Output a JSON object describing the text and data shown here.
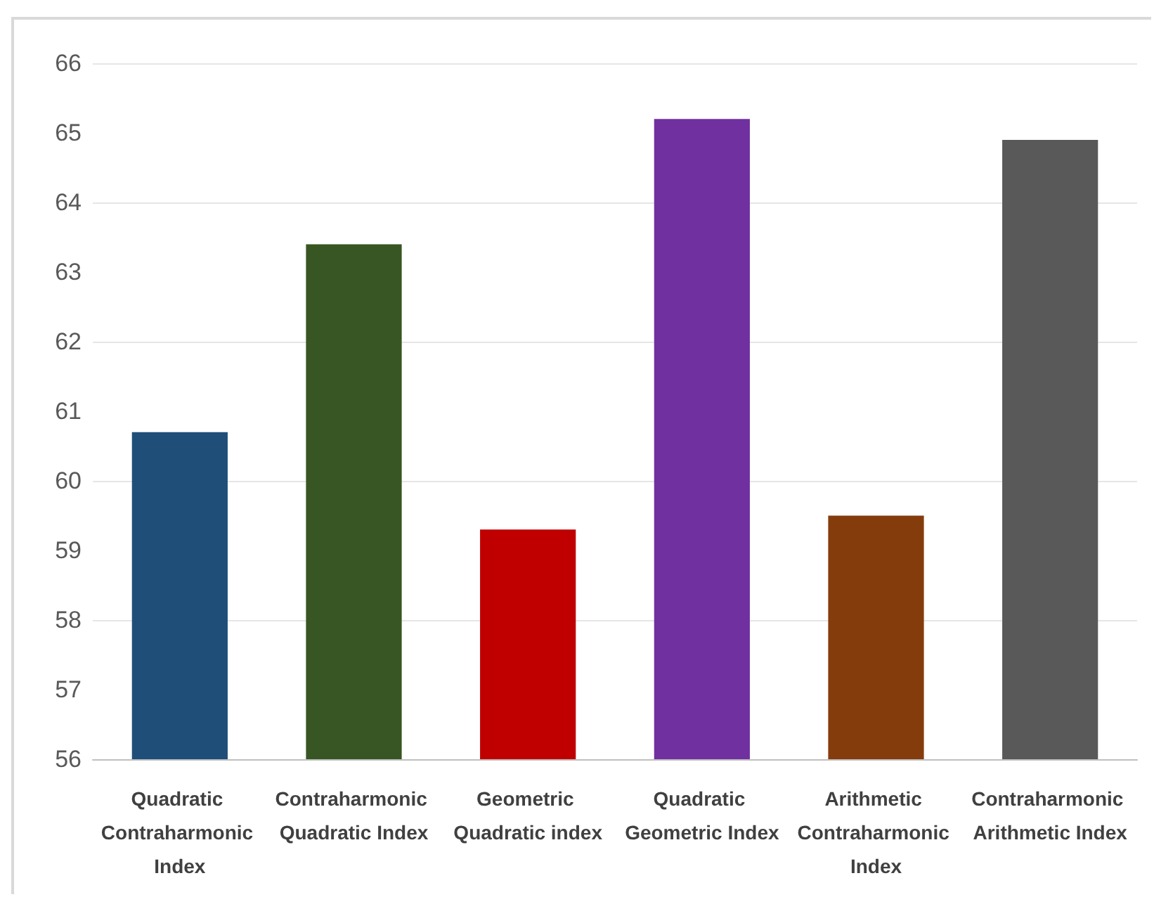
{
  "chart_data": {
    "type": "bar",
    "categories": [
      "Quadratic Contraharmonic Index",
      "Contraharmonic Quadratic Index",
      "Geometric Quadratic index",
      "Quadratic Geometric Index",
      "Arithmetic Contraharmonic Index",
      "Contraharmonic Arithmetic Index"
    ],
    "values": [
      60.7,
      63.4,
      59.3,
      65.2,
      59.5,
      64.9
    ],
    "colors": [
      "#1f4e79",
      "#375623",
      "#c00000",
      "#7030a0",
      "#843c0c",
      "#595959"
    ],
    "ylim": [
      56,
      66
    ],
    "yticks": [
      56,
      57,
      58,
      59,
      60,
      61,
      62,
      63,
      64,
      65,
      66
    ],
    "grid": "y"
  }
}
